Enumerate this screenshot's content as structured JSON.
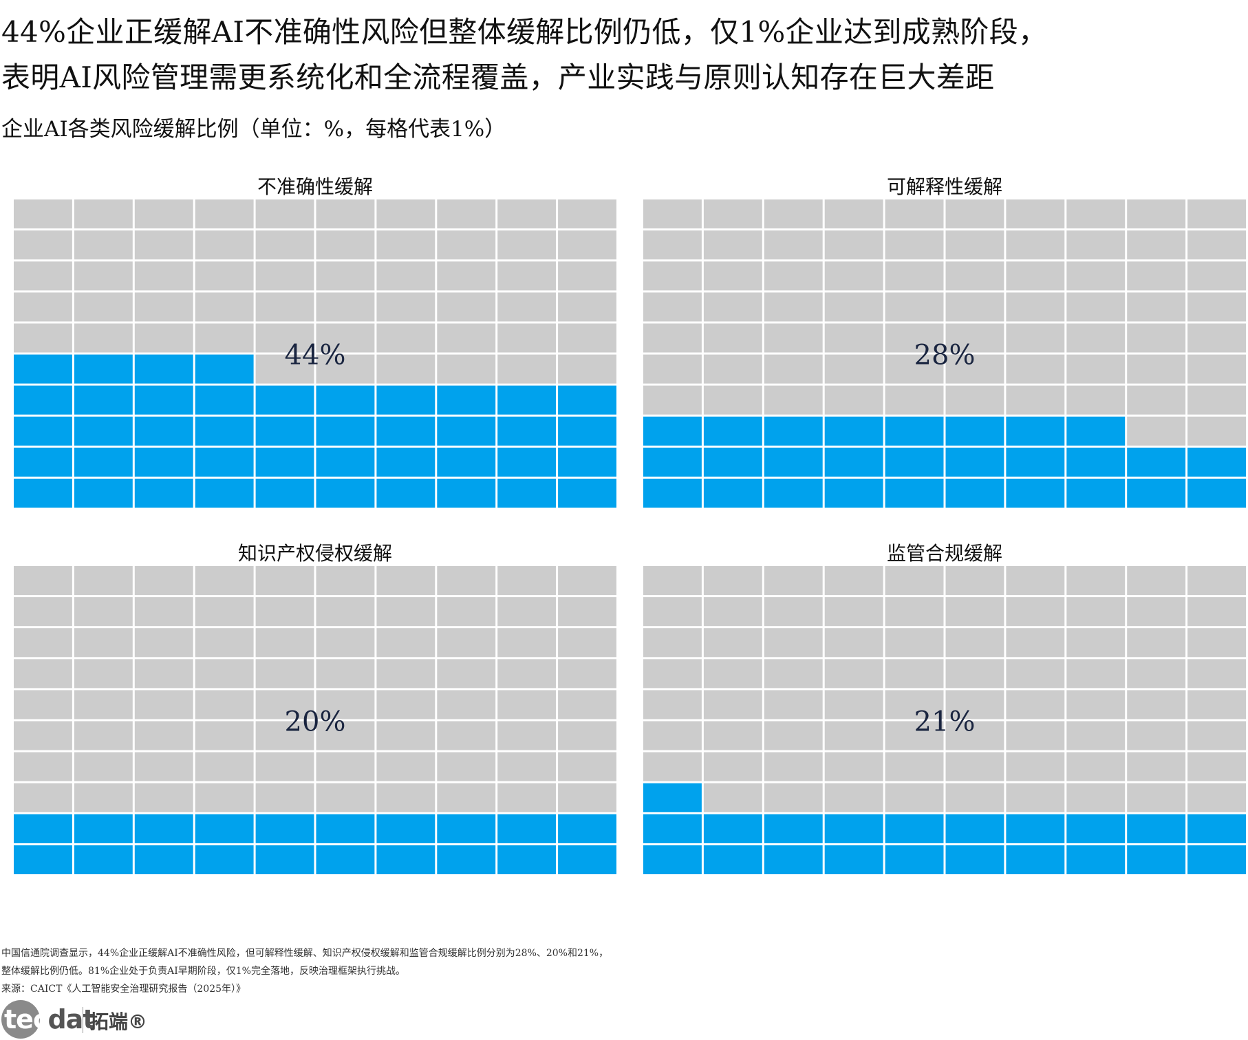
{
  "title_lines": [
    "44%企业正缓解AI不准确性风险但整体缓解比例仍低，仅1%企业达到成熟阶段，",
    "表明AI风险管理需更系统化和全流程覆盖，产业实践与原则认知存在巨大差距"
  ],
  "subtitle": "企业AI各类风险缓解比例（单位：%，每格代表1%）",
  "colors": {
    "filled": "#00a2ed",
    "empty": "#cccccc",
    "grid_line": "#ffffff"
  },
  "chart_data": {
    "type": "waffle",
    "title": "企业AI各类风险缓解比例（单位：%，每格代表1%）",
    "units": "%",
    "cells_per_chart": 100,
    "grid": "10x10",
    "panels": [
      {
        "name": "不准确性缓解",
        "value": 44,
        "label": "44%"
      },
      {
        "name": "可解释性缓解",
        "value": 28,
        "label": "28%"
      },
      {
        "name": "知识产权侵权缓解",
        "value": 20,
        "label": "20%"
      },
      {
        "name": "监管合规缓解",
        "value": 21,
        "label": "21%"
      }
    ]
  },
  "notes": [
    "中国信通院调查显示，44%企业正缓解AI不准确性风险，但可解释性缓解、知识产权侵权缓解和监管合规缓解比例分别为28%、20%和21%，",
    "整体缓解比例仍低。81%企业处于负责AI早期阶段，仅1%完全落地，反映治理框架执行挑战。",
    "来源：CAICT《人工智能安全治理研究报告（2025年）》"
  ],
  "logo": {
    "word_a": "tec",
    "word_b": "dat",
    "cn": "拓端®"
  }
}
